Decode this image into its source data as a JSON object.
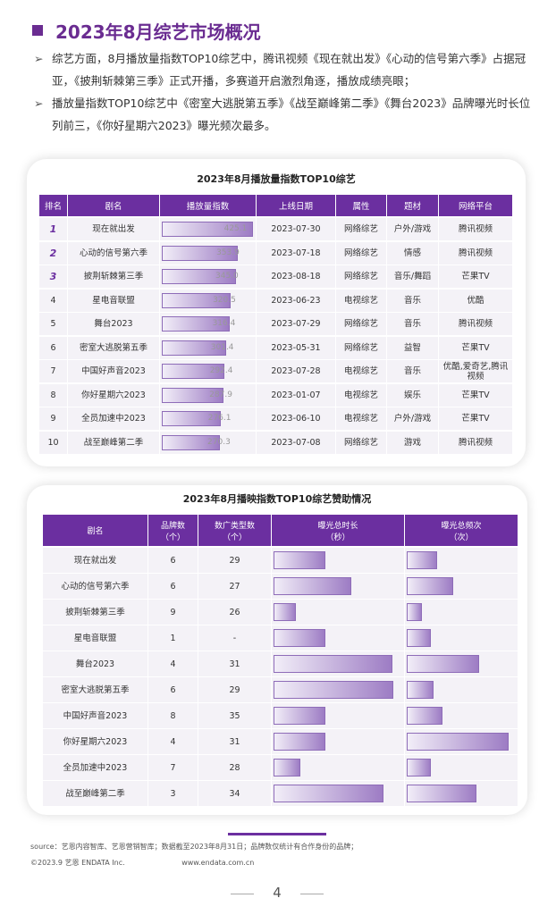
{
  "header": {
    "title": "2023年8月综艺市场概况"
  },
  "bullets": [
    "综艺方面，8月播放量指数TOP10综艺中，腾讯视频《现在就出发》《心动的信号第六季》占据冠亚，《披荆斩棘第三季》正式开播，多赛道开启激烈角逐，播放成绩亮眼；",
    "播放量指数TOP10综艺中《密室大逃脱第五季》《战至巅峰第二季》《舞台2023》品牌曝光时长位列前三，《你好星期六2023》曝光频次最多。"
  ],
  "table1": {
    "title": "2023年8月播放量指数TOP10综艺",
    "columns": [
      "排名",
      "剧名",
      "播放量指数",
      "上线日期",
      "属性",
      "题材",
      "网络平台"
    ],
    "rows": [
      [
        "1",
        "现在就出发",
        "425.1",
        "2023-07-30",
        "网络综艺",
        "户外/游戏",
        "腾讯视频"
      ],
      [
        "2",
        "心动的信号第六季",
        "353.9",
        "2023-07-18",
        "网络综艺",
        "情感",
        "腾讯视频"
      ],
      [
        "3",
        "披荆斩棘第三季",
        "345.0",
        "2023-08-18",
        "网络综艺",
        "音乐/舞蹈",
        "芒果TV"
      ],
      [
        "4",
        "星电音联盟",
        "320.5",
        "2023-06-23",
        "电视综艺",
        "音乐",
        "优酷"
      ],
      [
        "5",
        "舞台2023",
        "316.4",
        "2023-07-29",
        "网络综艺",
        "音乐",
        "腾讯视频"
      ],
      [
        "6",
        "密室大逃脱第五季",
        "301.4",
        "2023-05-31",
        "网络综艺",
        "益智",
        "芒果TV"
      ],
      [
        "7",
        "中国好声音2023",
        "292.4",
        "2023-07-28",
        "电视综艺",
        "音乐",
        "优酷,爱奇艺,腾讯视频"
      ],
      [
        "8",
        "你好星期六2023",
        "287.9",
        "2023-01-07",
        "电视综艺",
        "娱乐",
        "芒果TV"
      ],
      [
        "9",
        "全员加速中2023",
        "276.1",
        "2023-06-10",
        "电视综艺",
        "户外/游戏",
        "芒果TV"
      ],
      [
        "10",
        "战至巅峰第二季",
        "270.3",
        "2023-07-08",
        "网络综艺",
        "游戏",
        "腾讯视频"
      ]
    ]
  },
  "table2": {
    "title": "2023年8月播映指数TOP10综艺赞助情况",
    "columns": [
      "剧名",
      "品牌数\n（个）",
      "数广类型数\n（个）",
      "曝光总时长\n（秒）",
      "曝光总频次\n（次）"
    ],
    "rows": [
      [
        "现在就出发",
        "6",
        "29"
      ],
      [
        "心动的信号第六季",
        "6",
        "27"
      ],
      [
        "披荆斩棘第三季",
        "9",
        "26"
      ],
      [
        "星电音联盟",
        "1",
        "-"
      ],
      [
        "舞台2023",
        "4",
        "31"
      ],
      [
        "密室大逃脱第五季",
        "6",
        "29"
      ],
      [
        "中国好声音2023",
        "8",
        "35"
      ],
      [
        "你好星期六2023",
        "4",
        "31"
      ],
      [
        "全员加速中2023",
        "7",
        "28"
      ],
      [
        "战至巅峰第二季",
        "3",
        "34"
      ]
    ],
    "exposure_duration": [
      58,
      86,
      25,
      58,
      132,
      133,
      58,
      58,
      30,
      122
    ],
    "exposure_frequency": [
      22,
      34,
      11,
      18,
      53,
      20,
      26,
      75,
      18,
      51
    ]
  },
  "source": [
    "source：艺恩内容智库、艺恩营销智库；数据截至2023年8月31日；品牌数仅统计有合作身份的品牌；",
    "©2023.9 艺恩 ENDATA Inc.                         www.endata.com.cn"
  ],
  "page_number": "4"
}
